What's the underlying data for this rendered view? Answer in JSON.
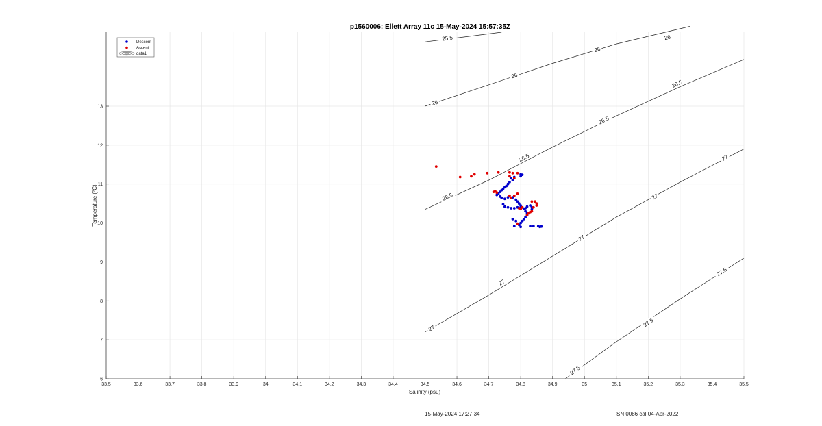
{
  "chart_data": {
    "type": "scatter",
    "title": "p1560006: Ellett Array 11c 15-May-2024 15:57:35Z",
    "xlabel": "Salinity (psu)",
    "ylabel": "Temperature (°C)",
    "xlim": [
      33.5,
      35.5
    ],
    "ylim": [
      6,
      14.9
    ],
    "xticks": [
      33.5,
      33.6,
      33.7,
      33.8,
      33.9,
      34,
      34.1,
      34.2,
      34.3,
      34.4,
      34.5,
      34.6,
      34.7,
      34.8,
      34.9,
      35,
      35.1,
      35.2,
      35.3,
      35.4,
      35.5
    ],
    "xtick_labels": [
      "33.5",
      "33.6",
      "33.7",
      "33.8",
      "33.9",
      "34",
      "34.1",
      "34.2",
      "34.3",
      "34.4",
      "34.5",
      "34.6",
      "34.7",
      "34.8",
      "34.9",
      "35",
      "35.1",
      "35.2",
      "35.3",
      "35.4",
      "35.5"
    ],
    "yticks": [
      6,
      7,
      8,
      9,
      10,
      11,
      12,
      13
    ],
    "ytick_labels": [
      "6",
      "7",
      "8",
      "9",
      "10",
      "11",
      "12",
      "13"
    ],
    "grid": true,
    "legend_position": "top-left",
    "legend": [
      {
        "label": "Descent",
        "color": "#0000cc",
        "marker": "dot"
      },
      {
        "label": "Ascent",
        "color": "#e00000",
        "marker": "dot"
      },
      {
        "label": "data1",
        "color": "#555555",
        "marker": "contour"
      }
    ],
    "series": [
      {
        "name": "Descent",
        "color": "#0000cc",
        "points": [
          [
            34.8,
            11.25
          ],
          [
            34.805,
            11.24
          ],
          [
            34.8,
            11.2
          ],
          [
            34.78,
            11.18
          ],
          [
            34.775,
            11.1
          ],
          [
            34.77,
            11.15
          ],
          [
            34.765,
            11.05
          ],
          [
            34.76,
            11.0
          ],
          [
            34.755,
            10.95
          ],
          [
            34.75,
            10.92
          ],
          [
            34.745,
            10.88
          ],
          [
            34.74,
            10.84
          ],
          [
            34.735,
            10.8
          ],
          [
            34.73,
            10.75
          ],
          [
            34.725,
            10.72
          ],
          [
            34.735,
            10.68
          ],
          [
            34.74,
            10.65
          ],
          [
            34.75,
            10.62
          ],
          [
            34.76,
            10.66
          ],
          [
            34.775,
            10.66
          ],
          [
            34.785,
            10.6
          ],
          [
            34.79,
            10.55
          ],
          [
            34.795,
            10.5
          ],
          [
            34.8,
            10.45
          ],
          [
            34.805,
            10.4
          ],
          [
            34.81,
            10.36
          ],
          [
            34.815,
            10.3
          ],
          [
            34.82,
            10.25
          ],
          [
            34.82,
            10.2
          ],
          [
            34.815,
            10.15
          ],
          [
            34.81,
            10.1
          ],
          [
            34.805,
            10.05
          ],
          [
            34.8,
            10.0
          ],
          [
            34.795,
            9.95
          ],
          [
            34.8,
            9.9
          ],
          [
            34.78,
            9.92
          ],
          [
            34.83,
            9.92
          ],
          [
            34.84,
            9.92
          ],
          [
            34.855,
            9.92
          ],
          [
            34.86,
            9.9
          ],
          [
            34.865,
            9.91
          ],
          [
            34.825,
            10.25
          ],
          [
            34.835,
            10.4
          ],
          [
            34.83,
            10.45
          ],
          [
            34.835,
            10.35
          ],
          [
            34.77,
            10.38
          ],
          [
            34.76,
            10.4
          ],
          [
            34.75,
            10.42
          ],
          [
            34.745,
            10.48
          ],
          [
            34.78,
            10.38
          ],
          [
            34.79,
            10.4
          ],
          [
            34.8,
            10.4
          ],
          [
            34.815,
            10.38
          ],
          [
            34.82,
            10.42
          ],
          [
            34.775,
            10.1
          ],
          [
            34.785,
            10.05
          ]
        ]
      },
      {
        "name": "Ascent",
        "color": "#e00000",
        "points": [
          [
            34.535,
            11.45
          ],
          [
            34.61,
            11.18
          ],
          [
            34.645,
            11.2
          ],
          [
            34.655,
            11.25
          ],
          [
            34.695,
            11.28
          ],
          [
            34.73,
            11.3
          ],
          [
            34.765,
            11.3
          ],
          [
            34.775,
            11.28
          ],
          [
            34.79,
            11.28
          ],
          [
            34.765,
            11.2
          ],
          [
            34.78,
            11.15
          ],
          [
            34.715,
            10.8
          ],
          [
            34.72,
            10.82
          ],
          [
            34.725,
            10.78
          ],
          [
            34.765,
            10.7
          ],
          [
            34.77,
            10.65
          ],
          [
            34.78,
            10.7
          ],
          [
            34.79,
            10.75
          ],
          [
            34.795,
            10.38
          ],
          [
            34.8,
            10.36
          ],
          [
            34.805,
            10.4
          ],
          [
            34.835,
            10.55
          ],
          [
            34.845,
            10.55
          ],
          [
            34.85,
            10.5
          ],
          [
            34.85,
            10.45
          ],
          [
            34.84,
            10.4
          ],
          [
            34.835,
            10.3
          ],
          [
            34.83,
            10.28
          ],
          [
            34.825,
            10.25
          ],
          [
            34.82,
            10.2
          ],
          [
            34.79,
            9.98
          ]
        ]
      }
    ],
    "density_contours": [
      {
        "label": "25.5",
        "points": [
          [
            34.5,
            14.65
          ],
          [
            34.74,
            14.9
          ]
        ]
      },
      {
        "label": "26",
        "points": [
          [
            34.5,
            13.0
          ],
          [
            34.7,
            13.55
          ],
          [
            34.9,
            14.1
          ],
          [
            35.1,
            14.6
          ],
          [
            35.33,
            15.05
          ]
        ]
      },
      {
        "label": "26.5",
        "points": [
          [
            34.5,
            10.35
          ],
          [
            34.7,
            11.1
          ],
          [
            34.9,
            11.95
          ],
          [
            35.1,
            12.75
          ],
          [
            35.3,
            13.5
          ],
          [
            35.5,
            14.2
          ]
        ]
      },
      {
        "label": "27",
        "points": [
          [
            34.5,
            7.2
          ],
          [
            34.7,
            8.15
          ],
          [
            34.9,
            9.15
          ],
          [
            35.1,
            10.15
          ],
          [
            35.3,
            11.05
          ],
          [
            35.5,
            11.9
          ]
        ]
      },
      {
        "label": "27.5",
        "points": [
          [
            34.94,
            6.0
          ],
          [
            35.1,
            6.95
          ],
          [
            35.3,
            8.05
          ],
          [
            35.5,
            9.1
          ]
        ]
      }
    ],
    "contour_labels": [
      {
        "text": "25.5",
        "at": [
          34.57,
          14.75
        ]
      },
      {
        "text": "26",
        "at": [
          35.26,
          14.77
        ]
      },
      {
        "text": "26",
        "at": [
          35.04,
          14.46
        ]
      },
      {
        "text": "26",
        "at": [
          34.78,
          13.79
        ]
      },
      {
        "text": "26",
        "at": [
          34.53,
          13.09
        ]
      },
      {
        "text": "26.5",
        "at": [
          35.29,
          13.58
        ]
      },
      {
        "text": "26.5",
        "at": [
          35.06,
          12.64
        ]
      },
      {
        "text": "26.5",
        "at": [
          34.81,
          11.68
        ]
      },
      {
        "text": "26.5",
        "at": [
          34.57,
          10.68
        ]
      },
      {
        "text": "27",
        "at": [
          35.44,
          11.68
        ]
      },
      {
        "text": "27",
        "at": [
          35.22,
          10.68
        ]
      },
      {
        "text": "27",
        "at": [
          34.99,
          9.62
        ]
      },
      {
        "text": "27",
        "at": [
          34.74,
          8.48
        ]
      },
      {
        "text": "27",
        "at": [
          34.52,
          7.3
        ]
      },
      {
        "text": "27.5",
        "at": [
          35.43,
          8.75
        ]
      },
      {
        "text": "27.5",
        "at": [
          35.2,
          7.45
        ]
      },
      {
        "text": "27.5",
        "at": [
          34.97,
          6.22
        ]
      }
    ]
  },
  "footer": {
    "timestamp": "15-May-2024 17:27:34",
    "calibration": "SN 0086 cal 04-Apr-2022"
  }
}
